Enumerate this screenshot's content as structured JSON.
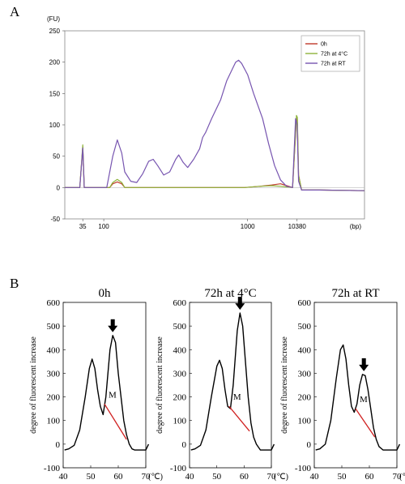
{
  "panel_a_label": "A",
  "panel_b_label": "B",
  "chart_data": [
    {
      "type": "line",
      "panel": "A",
      "ylabel": "(FU)",
      "xlabel": "(bp)",
      "ylim": [
        -50,
        250
      ],
      "yticks": [
        -50,
        0,
        50,
        100,
        150,
        200,
        250
      ],
      "x_tick_labels": [
        {
          "t": 6,
          "label": "35"
        },
        {
          "t": 13,
          "label": "100"
        },
        {
          "t": 61,
          "label": "1000"
        },
        {
          "t": 77.5,
          "label": "10380"
        }
      ],
      "x_range": [
        0,
        100
      ],
      "legend_position": "top-right",
      "series": [
        {
          "name": "0h",
          "color": "#c0392b",
          "points": [
            [
              0,
              0
            ],
            [
              5,
              0
            ],
            [
              6,
              65
            ],
            [
              6.5,
              0
            ],
            [
              15,
              0
            ],
            [
              16,
              6
            ],
            [
              17.5,
              9
            ],
            [
              19,
              6
            ],
            [
              20,
              0
            ],
            [
              50,
              0
            ],
            [
              60,
              0
            ],
            [
              65,
              2
            ],
            [
              69,
              4
            ],
            [
              72,
              6
            ],
            [
              74,
              3
            ],
            [
              76,
              0
            ],
            [
              77.3,
              110
            ],
            [
              77.6,
              103
            ],
            [
              78,
              20
            ],
            [
              79,
              -4
            ],
            [
              85,
              -4
            ],
            [
              100,
              -5
            ]
          ]
        },
        {
          "name": "72h at 4°C",
          "color": "#8db33a",
          "points": [
            [
              0,
              0
            ],
            [
              5,
              0
            ],
            [
              6,
              68
            ],
            [
              6.5,
              0
            ],
            [
              15,
              0
            ],
            [
              16,
              8
            ],
            [
              17.5,
              13
            ],
            [
              19,
              8
            ],
            [
              20,
              0
            ],
            [
              50,
              0
            ],
            [
              60,
              0
            ],
            [
              65,
              2
            ],
            [
              69,
              3
            ],
            [
              72,
              2
            ],
            [
              74,
              1
            ],
            [
              76,
              0
            ],
            [
              77.3,
              115
            ],
            [
              77.6,
              112
            ],
            [
              78,
              20
            ],
            [
              79,
              -4
            ],
            [
              85,
              -4
            ],
            [
              100,
              -5
            ]
          ]
        },
        {
          "name": "72h at RT",
          "color": "#7755b0",
          "points": [
            [
              0,
              0
            ],
            [
              5,
              0
            ],
            [
              6,
              63
            ],
            [
              6.5,
              0
            ],
            [
              14,
              0
            ],
            [
              16,
              50
            ],
            [
              17.5,
              76
            ],
            [
              19,
              55
            ],
            [
              20,
              25
            ],
            [
              22,
              10
            ],
            [
              24,
              8
            ],
            [
              26,
              22
            ],
            [
              28,
              42
            ],
            [
              29.5,
              45
            ],
            [
              31,
              35
            ],
            [
              33,
              20
            ],
            [
              35,
              25
            ],
            [
              37,
              45
            ],
            [
              38,
              52
            ],
            [
              39.5,
              40
            ],
            [
              41,
              32
            ],
            [
              43,
              45
            ],
            [
              45,
              62
            ],
            [
              46,
              80
            ],
            [
              47,
              88
            ],
            [
              49,
              110
            ],
            [
              52,
              140
            ],
            [
              54,
              170
            ],
            [
              56,
              190
            ],
            [
              57,
              200
            ],
            [
              58,
              203
            ],
            [
              59,
              198
            ],
            [
              61,
              180
            ],
            [
              63,
              150
            ],
            [
              66,
              110
            ],
            [
              68,
              70
            ],
            [
              70,
              35
            ],
            [
              72,
              12
            ],
            [
              74,
              2
            ],
            [
              76,
              0
            ],
            [
              77,
              110
            ],
            [
              77.5,
              100
            ],
            [
              78,
              10
            ],
            [
              79,
              -4
            ],
            [
              85,
              -4
            ],
            [
              100,
              -5
            ]
          ]
        }
      ]
    },
    {
      "type": "line",
      "panel": "B",
      "title": "0h",
      "ylabel": "degree of fluorescent increase",
      "xunit": "(℃)",
      "ylim": [
        -100,
        600
      ],
      "yticks": [
        -100,
        0,
        100,
        200,
        300,
        400,
        500,
        600
      ],
      "xlim": [
        40,
        70
      ],
      "xticks": [
        40,
        50,
        60,
        70
      ],
      "annotation": "M",
      "series": [
        {
          "name": "",
          "color": "#000000",
          "points": [
            [
              40.5,
              -25
            ],
            [
              42,
              -20
            ],
            [
              44,
              -5
            ],
            [
              46,
              60
            ],
            [
              48,
              200
            ],
            [
              49.5,
              320
            ],
            [
              50.5,
              360
            ],
            [
              51.5,
              320
            ],
            [
              52.5,
              230
            ],
            [
              53.5,
              160
            ],
            [
              54.5,
              125
            ],
            [
              55.5,
              200
            ],
            [
              57,
              400
            ],
            [
              58,
              460
            ],
            [
              59,
              430
            ],
            [
              60,
              300
            ],
            [
              61,
              200
            ],
            [
              62,
              100
            ],
            [
              63,
              40
            ],
            [
              64,
              0
            ],
            [
              65,
              -20
            ],
            [
              66,
              -25
            ],
            [
              70,
              -25
            ],
            [
              71,
              0
            ]
          ]
        }
      ],
      "baseline_line": {
        "color": "#d02020",
        "points": [
          [
            55,
            170
          ],
          [
            63,
            20
          ]
        ]
      },
      "arrow_x": 58
    },
    {
      "type": "line",
      "panel": "B",
      "title": "72h at 4°C",
      "ylabel": "degree of fluorescent increase",
      "xunit": "(℃)",
      "ylim": [
        -100,
        600
      ],
      "yticks": [
        -100,
        0,
        100,
        200,
        300,
        400,
        500,
        600
      ],
      "xlim": [
        40,
        70
      ],
      "xticks": [
        40,
        50,
        60,
        70
      ],
      "annotation": "M",
      "series": [
        {
          "name": "",
          "color": "#000000",
          "points": [
            [
              40.5,
              -25
            ],
            [
              42,
              -20
            ],
            [
              44,
              -5
            ],
            [
              46,
              60
            ],
            [
              48,
              200
            ],
            [
              50,
              330
            ],
            [
              51,
              355
            ],
            [
              52,
              320
            ],
            [
              53,
              230
            ],
            [
              54,
              160
            ],
            [
              55,
              150
            ],
            [
              56,
              250
            ],
            [
              57.5,
              480
            ],
            [
              58.5,
              555
            ],
            [
              59.5,
              500
            ],
            [
              60.5,
              350
            ],
            [
              61.5,
              200
            ],
            [
              62.5,
              90
            ],
            [
              63.5,
              30
            ],
            [
              64.5,
              0
            ],
            [
              66,
              -25
            ],
            [
              70,
              -25
            ],
            [
              71,
              0
            ]
          ]
        }
      ],
      "baseline_line": {
        "color": "#d02020",
        "points": [
          [
            54.5,
            160
          ],
          [
            62,
            55
          ]
        ]
      },
      "arrow_x": 58.5
    },
    {
      "type": "line",
      "panel": "B",
      "title": "72h at RT",
      "ylabel": "degree of fluorescent increase",
      "xunit": "(℃)",
      "ylim": [
        -100,
        600
      ],
      "yticks": [
        -100,
        0,
        100,
        200,
        300,
        400,
        500,
        600
      ],
      "xlim": [
        40,
        70
      ],
      "xticks": [
        40,
        50,
        60,
        70
      ],
      "annotation": "M",
      "series": [
        {
          "name": "",
          "color": "#000000",
          "points": [
            [
              40.5,
              -25
            ],
            [
              42,
              -20
            ],
            [
              44,
              0
            ],
            [
              46,
              100
            ],
            [
              48,
              280
            ],
            [
              49.5,
              400
            ],
            [
              50.5,
              420
            ],
            [
              51.5,
              360
            ],
            [
              52.5,
              250
            ],
            [
              53.5,
              160
            ],
            [
              54.5,
              135
            ],
            [
              55.5,
              170
            ],
            [
              56.5,
              250
            ],
            [
              57.5,
              295
            ],
            [
              58.5,
              290
            ],
            [
              59.5,
              230
            ],
            [
              60.5,
              150
            ],
            [
              61.5,
              70
            ],
            [
              62.5,
              20
            ],
            [
              63.5,
              -10
            ],
            [
              65,
              -25
            ],
            [
              70,
              -25
            ],
            [
              71,
              0
            ]
          ]
        }
      ],
      "baseline_line": {
        "color": "#d02020",
        "points": [
          [
            55,
            150
          ],
          [
            62,
            30
          ]
        ]
      },
      "arrow_x": 58
    }
  ]
}
